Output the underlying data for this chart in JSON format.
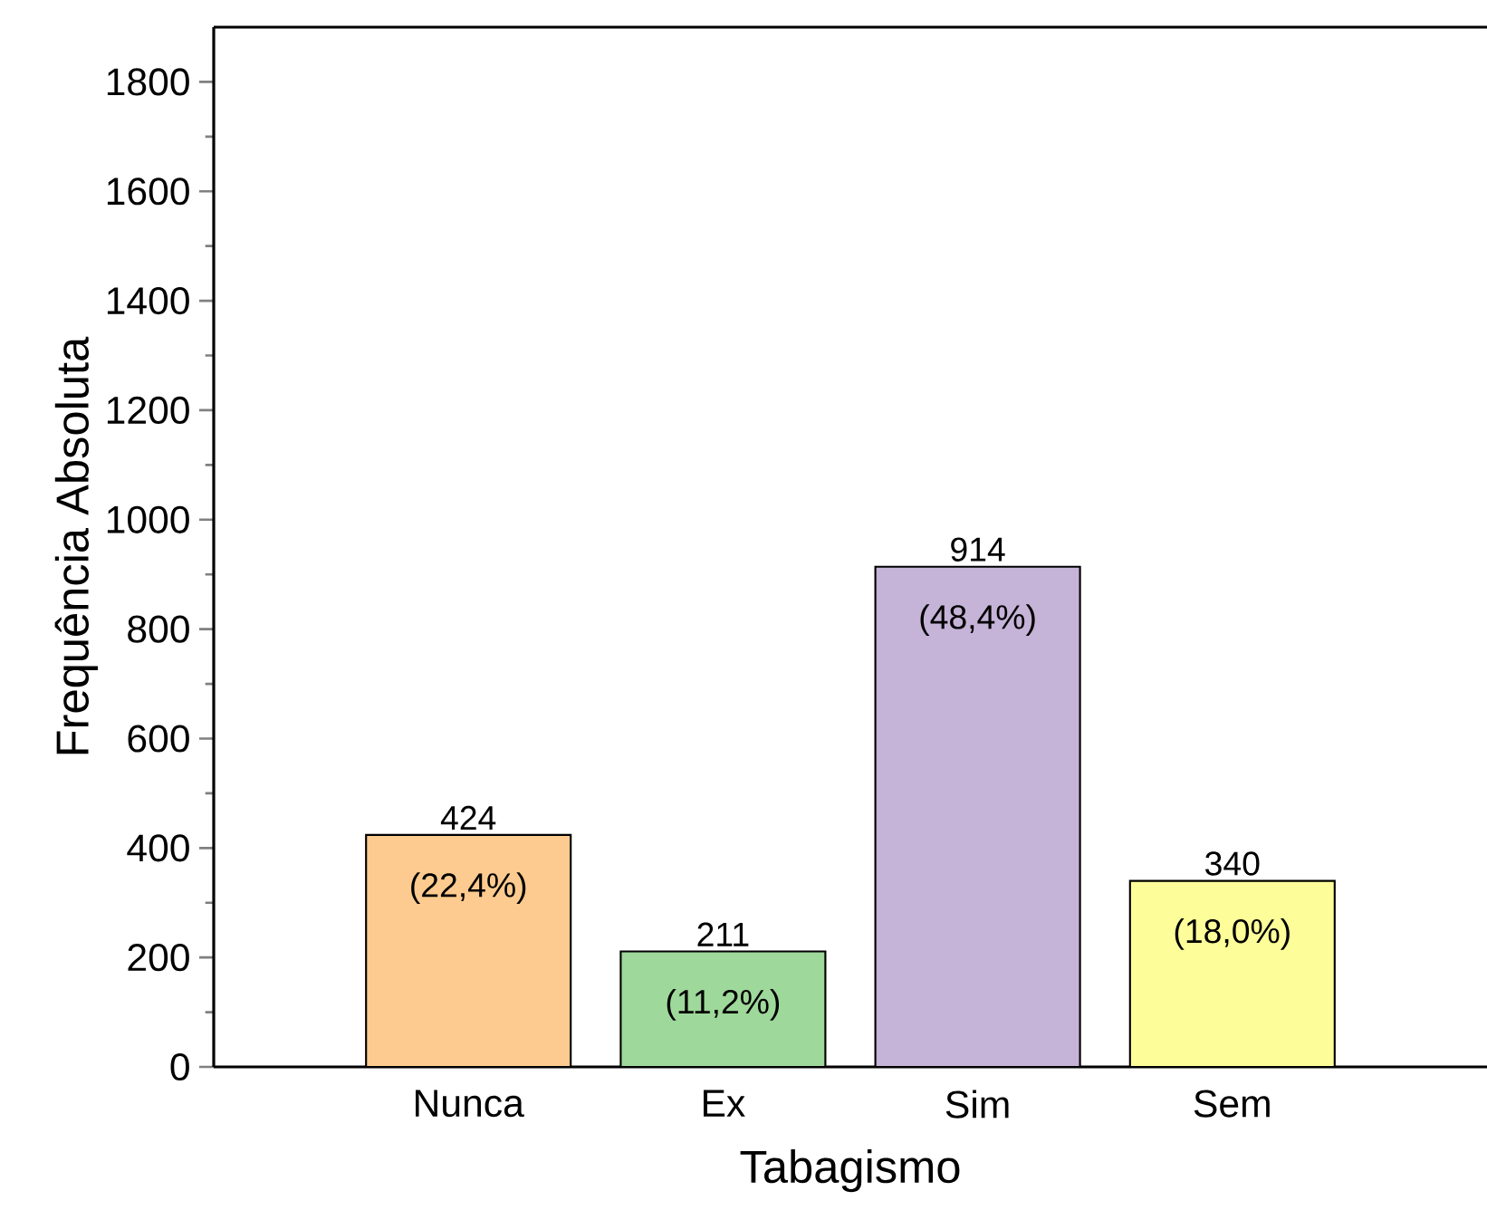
{
  "chart_data": {
    "type": "bar",
    "xlabel": "Tabagismo",
    "ylabel": "Frequência Absoluta",
    "categories": [
      "Nunca",
      "Ex",
      "Sim",
      "Sem"
    ],
    "values": [
      424,
      211,
      914,
      340
    ],
    "colors": [
      "#fdcb8f",
      "#9ed89a",
      "#c6b3d8",
      "#fdfd9a"
    ],
    "data_labels": true,
    "annotations": [
      {
        "text": "(22,4%)",
        "x": "Nunca",
        "y": 424
      },
      {
        "text": "(11,2%)",
        "x": "Ex",
        "y": 211
      },
      {
        "text": "(48,4%)",
        "x": "Sim",
        "y": 914
      },
      {
        "text": "(18,0%)",
        "x": "Sem",
        "y": 340
      }
    ],
    "ylim": [
      0,
      1900
    ],
    "yticks": [
      0,
      200,
      400,
      600,
      800,
      1000,
      1200,
      1400,
      1600,
      1800
    ],
    "grid": false
  }
}
